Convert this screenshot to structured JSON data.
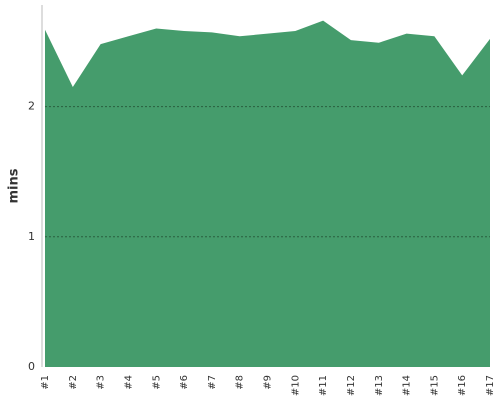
{
  "chart_data": {
    "type": "area",
    "y_label": "mins",
    "categories": [
      "#1",
      "#2",
      "#3",
      "#4",
      "#5",
      "#6",
      "#7",
      "#8",
      "#9",
      "#10",
      "#11",
      "#12",
      "#13",
      "#14",
      "#15",
      "#16",
      "#17"
    ],
    "values": [
      2.59,
      2.15,
      2.48,
      2.54,
      2.6,
      2.58,
      2.57,
      2.54,
      2.56,
      2.58,
      2.66,
      2.51,
      2.49,
      2.56,
      2.54,
      2.24,
      2.52
    ],
    "color": "#459c6c",
    "ylim": [
      0,
      2.78
    ],
    "yticks": [
      0,
      1,
      2
    ],
    "grid": true
  }
}
